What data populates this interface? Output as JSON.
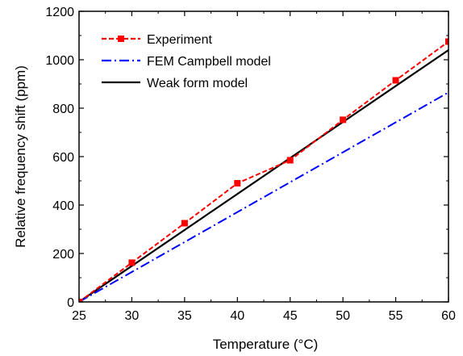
{
  "chart_data": {
    "type": "line",
    "title": "",
    "xlabel": "Temperature (°C)",
    "ylabel": "Relative frequency shift (ppm)",
    "xlim": [
      25,
      60
    ],
    "ylim": [
      0,
      1200
    ],
    "xticks": [
      25,
      30,
      35,
      40,
      45,
      50,
      55,
      60
    ],
    "yticks": [
      0,
      200,
      400,
      600,
      800,
      1000,
      1200
    ],
    "grid": false,
    "legend_position": "top-left",
    "series": [
      {
        "name": "Experiment",
        "style": "dashed-with-square-markers",
        "color": "#ff0000",
        "x": [
          25,
          30,
          35,
          40,
          45,
          50,
          55,
          60
        ],
        "y": [
          0,
          162,
          325,
          490,
          585,
          752,
          915,
          1075
        ]
      },
      {
        "name": "FEM Campbell model",
        "style": "dash-dot",
        "color": "#0000ff",
        "x": [
          25,
          60
        ],
        "y": [
          0,
          865
        ]
      },
      {
        "name": "Weak form model",
        "style": "solid",
        "color": "#000000",
        "x": [
          25,
          60
        ],
        "y": [
          0,
          1040
        ]
      }
    ]
  }
}
